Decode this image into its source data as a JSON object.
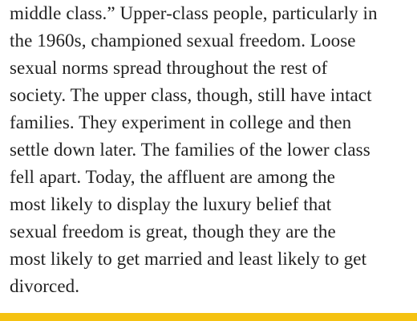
{
  "article": {
    "lines": [
      "middle class.” Upper-class people, particularly in",
      "the 1960s, championed sexual freedom. Loose",
      "sexual norms spread throughout the rest of",
      "society. The upper class, though, still have intact",
      "families. They experiment in college and then",
      "settle down later. The families of the lower class",
      "fell apart. Today, the affluent are among the",
      "most likely to display the luxury belief that",
      "sexual freedom is great, though they are the",
      "most likely to get married and least likely to get",
      "divorced."
    ]
  },
  "colors": {
    "text": "#222222",
    "accent_bar": "#F5C211",
    "background": "#FFFFFF"
  }
}
